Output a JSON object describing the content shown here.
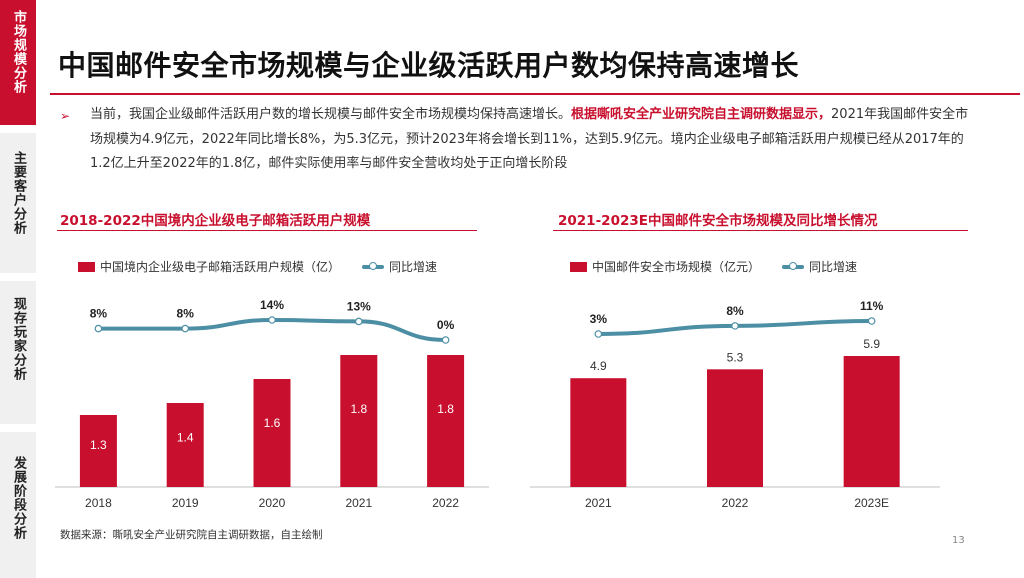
{
  "sidebar": {
    "tabs": [
      {
        "label": "市场规模分析",
        "active": true
      },
      {
        "label": "主要客户分析",
        "active": false
      },
      {
        "label": "现存玩家分析",
        "active": false
      },
      {
        "label": "发展阶段分析",
        "active": false
      }
    ]
  },
  "title": "中国邮件安全市场规模与企业级活跃用户数均保持高速增长",
  "paragraph": {
    "part1": "当前，我国企业级邮件活跃用户数的增长规模与邮件安全市场规模均保持高速增长。",
    "highlight": "根据嘶吼安全产业研究院自主调研数据显示，",
    "part2": "2021年我国邮件安全市场规模为4.9亿元，2022年同比增长8%，为5.3亿元，预计2023年将会增长到11%，达到5.9亿元。境内企业级电子邮箱活跃用户规模已经从2017年的1.2亿上升至2022年的1.8亿，邮件实际使用率与邮件安全营收均处于正向增长阶段"
  },
  "chart_data": [
    {
      "type": "bar",
      "title": "2018-2022中国境内企业级电子邮箱活跃用户规模",
      "categories": [
        "2018",
        "2019",
        "2020",
        "2021",
        "2022"
      ],
      "series": [
        {
          "name": "中国境内企业级电子邮箱活跃用户规模（亿）",
          "kind": "bar",
          "values": [
            1.3,
            1.4,
            1.6,
            1.8,
            1.8
          ],
          "labels": [
            "1.3",
            "1.4",
            "1.6",
            "1.8",
            "1.8"
          ]
        },
        {
          "name": "同比增速",
          "kind": "line",
          "values": [
            8,
            8,
            14,
            13,
            0
          ],
          "labels": [
            "8%",
            "8%",
            "14%",
            "13%",
            "0%"
          ]
        }
      ],
      "legend": "top",
      "colors": {
        "bar": "#c8102e",
        "line": "#4c8ea3"
      }
    },
    {
      "type": "bar",
      "title": "2021-2023E中国邮件安全市场规模及同比增长情况",
      "categories": [
        "2021",
        "2022",
        "2023E"
      ],
      "series": [
        {
          "name": "中国邮件安全市场规模（亿元）",
          "kind": "bar",
          "values": [
            4.9,
            5.3,
            5.9
          ],
          "labels": [
            "4.9",
            "5.3",
            "5.9"
          ]
        },
        {
          "name": "同比增速",
          "kind": "line",
          "values": [
            3,
            8,
            11
          ],
          "labels": [
            "3%",
            "8%",
            "11%"
          ]
        }
      ],
      "legend": "top",
      "colors": {
        "bar": "#c8102e",
        "line": "#4c8ea3"
      }
    }
  ],
  "source": "数据来源：嘶吼安全产业研究院自主调研数据，自主绘制",
  "page_number": "13"
}
